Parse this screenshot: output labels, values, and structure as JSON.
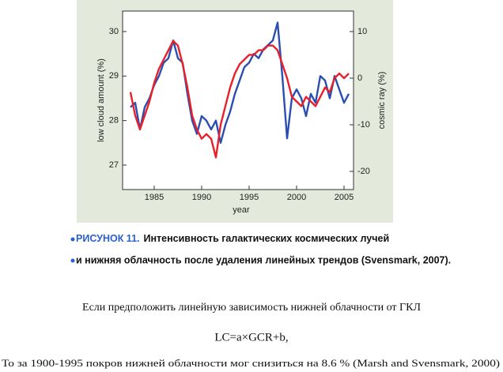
{
  "chart_data": {
    "type": "line",
    "xlabel": "year",
    "ylabel": "low cloud amount (%)",
    "y2label": "cosmic ray (%)",
    "x": [
      1982.5,
      1983,
      1983.5,
      1984,
      1984.5,
      1985,
      1985.5,
      1986,
      1986.5,
      1987,
      1987.5,
      1988,
      1988.5,
      1989,
      1989.5,
      1990,
      1990.5,
      1991,
      1991.5,
      1992,
      1992.5,
      1993,
      1993.5,
      1994,
      1994.5,
      1995,
      1995.5,
      1996,
      1996.5,
      1997,
      1997.5,
      1998,
      1998.5,
      1999,
      1999.5,
      2000,
      2000.5,
      2001,
      2001.5,
      2002,
      2002.5,
      2003,
      2003.5,
      2004,
      2004.5,
      2005,
      2005.5
    ],
    "series": [
      {
        "name": "low cloud amount",
        "color": "#2b4fb0",
        "values": [
          28.3,
          28.4,
          27.8,
          28.3,
          28.5,
          28.8,
          29.0,
          29.3,
          29.4,
          29.8,
          29.4,
          29.3,
          28.6,
          28.0,
          27.7,
          28.1,
          28.0,
          27.8,
          28.0,
          27.5,
          27.9,
          28.2,
          28.6,
          28.9,
          29.2,
          29.3,
          29.5,
          29.4,
          29.6,
          29.7,
          29.8,
          30.2,
          29.0,
          27.6,
          28.5,
          28.7,
          28.5,
          28.1,
          28.6,
          28.4,
          29.0,
          28.9,
          28.5,
          29.0,
          28.7,
          28.4,
          28.6
        ]
      },
      {
        "name": "cosmic ray",
        "color": "#e8202a",
        "axis": "y2",
        "values": [
          -3,
          -8,
          -11,
          -8,
          -5,
          -1,
          2,
          4,
          6,
          8,
          7,
          3,
          -2,
          -8,
          -11,
          -13,
          -12,
          -13,
          -17,
          -10,
          -6,
          -2,
          1,
          3,
          4,
          5,
          5,
          6,
          6,
          7,
          7,
          6,
          3,
          0,
          -4,
          -5,
          -6,
          -4,
          -5,
          -6,
          -4,
          -2,
          -3,
          0,
          1,
          0,
          1
        ]
      }
    ],
    "xlim": [
      1981.67,
      2006.0
    ],
    "xticks": [
      1985,
      1990,
      1995,
      2000,
      2005
    ],
    "ylim": [
      26.45,
      30.46
    ],
    "yticks": [
      27,
      28,
      29,
      30
    ],
    "y2lim": [
      -23.9,
      14.4
    ],
    "y2ticks": [
      -20,
      -10,
      0,
      10
    ]
  },
  "caption": {
    "figure": "РИСУНОК 11.",
    "line1": "Интенсивность галактических космических лучей",
    "line2": "и нижняя облачность после удаления линейных трендов (Svensmark, 2007)."
  },
  "text": {
    "paragraph": "Если предположить линейную зависимость нижней облачности от ГКЛ",
    "formula": "LC=a×GCR+b,",
    "conclusion": "То за 1900-1995 покров нижней  облачности мог снизиться на 8.6 % (Marsh and Svensmark,  2000)"
  }
}
